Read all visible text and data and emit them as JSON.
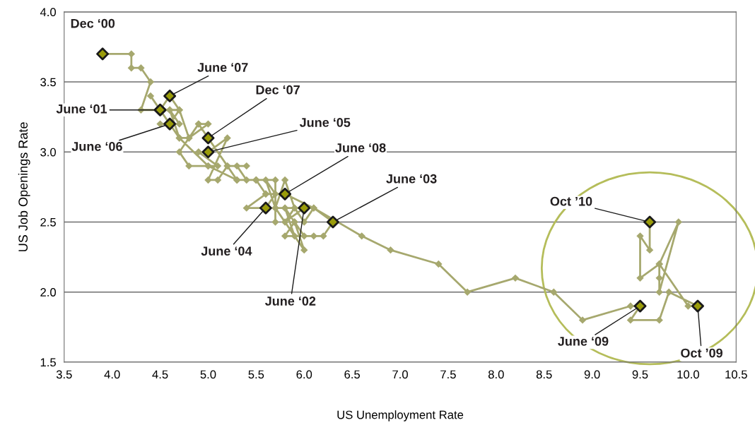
{
  "chart_data": {
    "type": "line",
    "xlabel": "US Unemployment Rate",
    "ylabel": "US Job Openings Rate",
    "xlim": [
      3.5,
      10.5
    ],
    "xticks": [
      {
        "value": 3.5,
        "label": "3.5"
      },
      {
        "value": 4.0,
        "label": "4.0"
      },
      {
        "value": 4.5,
        "label": "4.5"
      },
      {
        "value": 5.0,
        "label": "5.0"
      },
      {
        "value": 5.5,
        "label": "5.5"
      },
      {
        "value": 6.0,
        "label": "6.0"
      },
      {
        "value": 6.5,
        "label": "6.5"
      },
      {
        "value": 7.0,
        "label": "7.0"
      },
      {
        "value": 7.5,
        "label": "7.5"
      },
      {
        "value": 8.0,
        "label": "8.0"
      },
      {
        "value": 8.5,
        "label": "8.5"
      },
      {
        "value": 9.0,
        "label": "9.0"
      },
      {
        "value": 9.5,
        "label": "9.5"
      },
      {
        "value": 10.0,
        "label": "10.0"
      },
      {
        "value": 10.5,
        "label": "10.5"
      }
    ],
    "ylim": [
      1.5,
      4.0
    ],
    "yticks": [
      {
        "value": 1.5,
        "label": "1.5"
      },
      {
        "value": 2.0,
        "label": "2.0"
      },
      {
        "value": 2.5,
        "label": "2.5"
      },
      {
        "value": 3.0,
        "label": "3.0"
      },
      {
        "value": 3.5,
        "label": "3.5"
      },
      {
        "value": 4.0,
        "label": "4.0"
      }
    ],
    "grid": "y",
    "marker": "diamond",
    "line_style": "solid",
    "legend": false,
    "series": [
      {
        "color": "#a6a86e",
        "x": [
          3.9,
          4.2,
          4.2,
          4.3,
          4.4,
          4.3,
          4.5,
          4.4,
          4.7,
          5.0,
          5.3,
          5.5,
          5.7,
          5.7,
          5.7,
          5.9,
          5.8,
          6.0,
          5.8,
          5.9,
          5.7,
          6.0,
          5.9,
          6.0,
          5.8,
          5.9,
          5.8,
          6.1,
          6.2,
          6.3,
          6.1,
          6.0,
          5.9,
          5.8,
          5.7,
          5.6,
          5.7,
          5.6,
          5.4,
          5.6,
          5.5,
          5.4,
          5.3,
          5.4,
          5.2,
          5.1,
          5.0,
          5.2,
          5.0,
          4.9,
          5.1,
          5.0,
          4.8,
          4.7,
          4.9,
          4.8,
          4.7,
          4.6,
          4.5,
          4.7,
          4.6,
          4.5,
          4.6,
          4.7,
          4.6,
          4.7,
          4.8,
          5.0,
          4.9,
          5.0,
          5.2,
          5.3,
          5.5,
          5.6,
          5.8,
          6.1,
          6.6,
          6.9,
          7.4,
          7.7,
          8.2,
          8.6,
          8.9,
          9.4,
          9.5,
          9.4,
          9.7,
          9.8,
          10.1,
          10.0,
          9.7,
          9.7,
          9.7,
          9.9,
          9.7,
          9.5,
          9.5,
          9.6,
          9.6
        ],
        "values": [
          3.7,
          3.7,
          3.6,
          3.6,
          3.5,
          3.3,
          3.3,
          3.4,
          3.1,
          2.9,
          2.8,
          2.8,
          2.8,
          2.5,
          2.6,
          2.6,
          2.5,
          2.6,
          2.6,
          2.4,
          2.6,
          2.3,
          2.5,
          2.4,
          2.6,
          2.5,
          2.4,
          2.4,
          2.4,
          2.5,
          2.6,
          2.5,
          2.6,
          2.8,
          2.6,
          2.8,
          2.7,
          2.6,
          2.6,
          2.7,
          2.8,
          2.8,
          2.9,
          2.9,
          2.9,
          2.8,
          2.8,
          3.1,
          3.0,
          3.0,
          2.9,
          2.9,
          2.9,
          3.0,
          3.2,
          3.1,
          3.3,
          3.2,
          3.2,
          3.2,
          3.3,
          3.3,
          3.4,
          3.3,
          3.3,
          3.1,
          3.1,
          3.2,
          3.2,
          3.1,
          2.9,
          2.8,
          2.8,
          2.7,
          2.7,
          2.6,
          2.4,
          2.3,
          2.2,
          2.0,
          2.1,
          2.0,
          1.8,
          1.9,
          1.9,
          1.8,
          1.8,
          2.0,
          1.9,
          1.9,
          2.2,
          2.1,
          2.0,
          2.5,
          2.2,
          2.1,
          2.4,
          2.3,
          2.5
        ]
      }
    ],
    "annotations": [
      {
        "text": "Dec ‘00",
        "x": 3.9,
        "y": 3.7
      },
      {
        "text": "June ‘07",
        "x": 4.6,
        "y": 3.4
      },
      {
        "text": "June ‘01",
        "x": 4.5,
        "y": 3.3
      },
      {
        "text": "June ‘06",
        "x": 4.6,
        "y": 3.2
      },
      {
        "text": "Dec ‘07",
        "x": 5.0,
        "y": 3.1
      },
      {
        "text": "June ‘05",
        "x": 5.0,
        "y": 3.0
      },
      {
        "text": "June ‘08",
        "x": 5.8,
        "y": 2.7
      },
      {
        "text": "June ‘03",
        "x": 6.3,
        "y": 2.5
      },
      {
        "text": "June ‘04",
        "x": 5.6,
        "y": 2.6
      },
      {
        "text": "June ‘02",
        "x": 6.0,
        "y": 2.6
      },
      {
        "text": "Oct ’10",
        "x": 9.6,
        "y": 2.5
      },
      {
        "text": "June ‘09",
        "x": 9.5,
        "y": 1.9
      },
      {
        "text": "Oct ’09",
        "x": 10.1,
        "y": 1.9
      }
    ]
  }
}
